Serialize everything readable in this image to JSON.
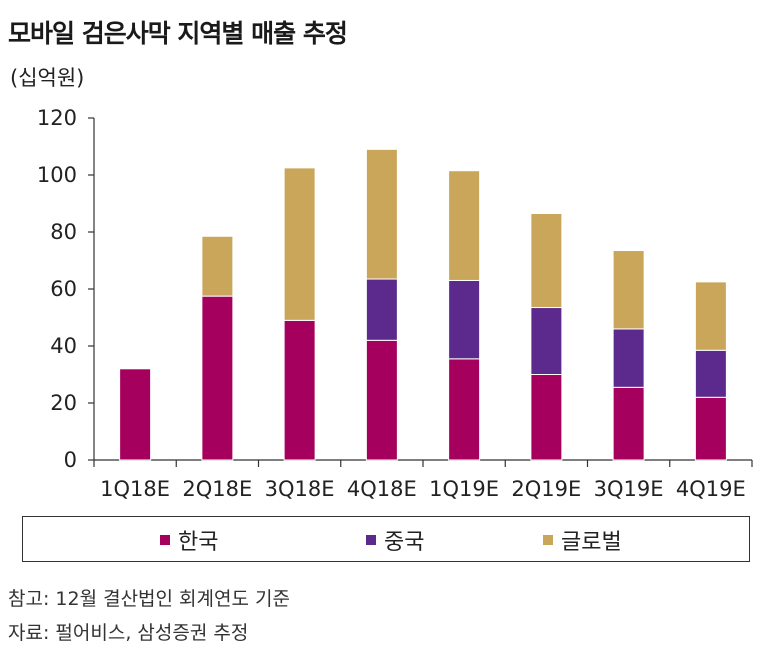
{
  "title": "모바일 검은사막 지역별 매출 추정",
  "unit_label": "(십억원)",
  "chart_data": {
    "type": "bar",
    "stacked": true,
    "categories": [
      "1Q18E",
      "2Q18E",
      "3Q18E",
      "4Q18E",
      "1Q19E",
      "2Q19E",
      "3Q19E",
      "4Q19E"
    ],
    "ylim": [
      0,
      120
    ],
    "yticks": [
      0,
      20,
      40,
      60,
      80,
      100,
      120
    ],
    "grid": false,
    "legend_position": "bottom",
    "series": [
      {
        "name": "한국",
        "color": "#a6005e",
        "values": [
          32,
          57.5,
          49,
          42,
          35.5,
          30,
          25.5,
          22
        ]
      },
      {
        "name": "중국",
        "color": "#5b2a8c",
        "values": [
          0,
          0,
          0,
          21.5,
          27.5,
          23.5,
          20.5,
          16.5
        ]
      },
      {
        "name": "글로벌",
        "color": "#c9a65a",
        "values": [
          0,
          21,
          53.5,
          45.5,
          38.5,
          33,
          27.5,
          24
        ]
      }
    ]
  },
  "notes": [
    "참고: 12월 결산법인 회계연도 기준",
    "자료: 펄어비스, 삼성증권 추정"
  ]
}
